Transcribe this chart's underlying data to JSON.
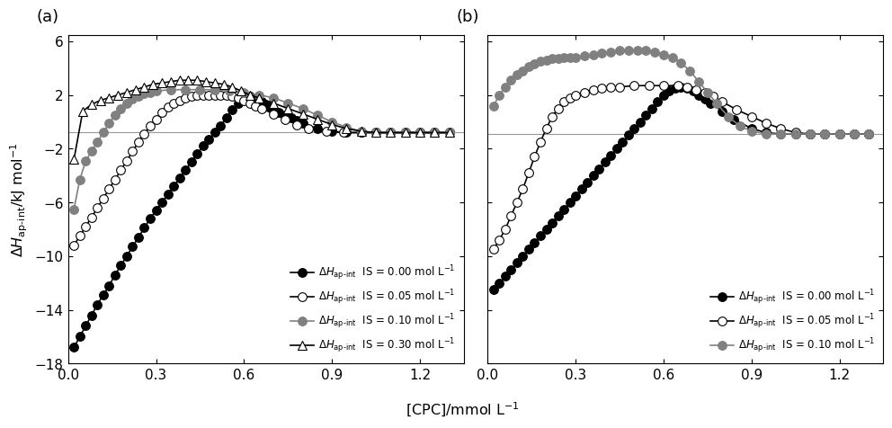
{
  "panel_a": {
    "series": [
      {
        "label": "IS = 0.00 mol L$^{-1}$",
        "color": "black",
        "marker": "o",
        "mfc": "black",
        "mec": "black",
        "x": [
          0.02,
          0.04,
          0.06,
          0.08,
          0.1,
          0.12,
          0.14,
          0.16,
          0.18,
          0.2,
          0.22,
          0.24,
          0.26,
          0.28,
          0.3,
          0.32,
          0.34,
          0.36,
          0.38,
          0.4,
          0.42,
          0.44,
          0.46,
          0.48,
          0.5,
          0.52,
          0.54,
          0.56,
          0.58,
          0.6,
          0.62,
          0.64,
          0.66,
          0.68,
          0.7,
          0.72,
          0.74,
          0.76,
          0.78,
          0.8,
          0.85,
          0.9,
          0.95,
          1.0,
          1.05,
          1.1,
          1.15,
          1.2,
          1.25,
          1.3
        ],
        "y": [
          -16.8,
          -16.0,
          -15.2,
          -14.4,
          -13.6,
          -12.9,
          -12.2,
          -11.4,
          -10.7,
          -10.0,
          -9.3,
          -8.6,
          -7.9,
          -7.2,
          -6.6,
          -6.0,
          -5.4,
          -4.8,
          -4.2,
          -3.6,
          -3.0,
          -2.4,
          -1.8,
          -1.3,
          -0.8,
          -0.3,
          0.3,
          0.9,
          1.4,
          1.7,
          1.9,
          1.8,
          1.5,
          1.2,
          0.9,
          0.7,
          0.5,
          0.3,
          0.1,
          -0.1,
          -0.5,
          -0.7,
          -0.8,
          -0.8,
          -0.8,
          -0.8,
          -0.8,
          -0.8,
          -0.8,
          -0.8
        ]
      },
      {
        "label": "IS = 0.05 mol L$^{-1}$",
        "color": "black",
        "marker": "o",
        "mfc": "white",
        "mec": "black",
        "x": [
          0.02,
          0.04,
          0.06,
          0.08,
          0.1,
          0.12,
          0.14,
          0.16,
          0.18,
          0.2,
          0.22,
          0.24,
          0.26,
          0.28,
          0.3,
          0.32,
          0.34,
          0.36,
          0.38,
          0.4,
          0.42,
          0.44,
          0.46,
          0.48,
          0.5,
          0.52,
          0.54,
          0.56,
          0.58,
          0.6,
          0.62,
          0.64,
          0.66,
          0.7,
          0.74,
          0.78,
          0.82,
          0.88,
          0.94,
          1.0,
          1.05,
          1.1,
          1.15,
          1.2,
          1.25,
          1.3
        ],
        "y": [
          -9.2,
          -8.5,
          -7.8,
          -7.1,
          -6.4,
          -5.7,
          -5.0,
          -4.3,
          -3.6,
          -2.9,
          -2.2,
          -1.5,
          -0.9,
          -0.3,
          0.2,
          0.7,
          1.1,
          1.4,
          1.6,
          1.8,
          1.9,
          2.0,
          2.0,
          2.0,
          2.0,
          2.0,
          2.0,
          1.9,
          1.8,
          1.6,
          1.4,
          1.2,
          1.0,
          0.6,
          0.2,
          -0.2,
          -0.5,
          -0.7,
          -0.8,
          -0.8,
          -0.8,
          -0.8,
          -0.8,
          -0.8,
          -0.8,
          -0.8
        ]
      },
      {
        "label": "IS = 0.10 mol L$^{-1}$",
        "color": "#808080",
        "marker": "o",
        "mfc": "#808080",
        "mec": "#808080",
        "x": [
          0.02,
          0.04,
          0.06,
          0.08,
          0.1,
          0.12,
          0.14,
          0.16,
          0.18,
          0.2,
          0.22,
          0.24,
          0.26,
          0.28,
          0.3,
          0.35,
          0.4,
          0.45,
          0.5,
          0.55,
          0.6,
          0.65,
          0.7,
          0.75,
          0.8,
          0.85,
          0.9,
          0.95,
          1.0,
          1.05,
          1.1,
          1.15,
          1.2,
          1.25,
          1.3
        ],
        "y": [
          -6.5,
          -4.3,
          -2.9,
          -2.2,
          -1.5,
          -0.8,
          -0.1,
          0.5,
          1.0,
          1.4,
          1.7,
          1.9,
          2.1,
          2.2,
          2.3,
          2.4,
          2.4,
          2.4,
          2.4,
          2.3,
          2.2,
          2.0,
          1.8,
          1.4,
          1.0,
          0.5,
          0.0,
          -0.4,
          -0.7,
          -0.8,
          -0.8,
          -0.8,
          -0.8,
          -0.8,
          -0.8
        ]
      },
      {
        "label": "IS = 0.30 mol L$^{-1}$",
        "color": "black",
        "marker": "^",
        "mfc": "white",
        "mec": "black",
        "x": [
          0.02,
          0.05,
          0.08,
          0.11,
          0.14,
          0.17,
          0.2,
          0.23,
          0.26,
          0.29,
          0.32,
          0.35,
          0.38,
          0.41,
          0.44,
          0.47,
          0.5,
          0.53,
          0.56,
          0.59,
          0.62,
          0.65,
          0.7,
          0.75,
          0.8,
          0.85,
          0.9,
          0.95,
          1.0,
          1.05,
          1.1,
          1.15,
          1.2,
          1.25,
          1.3
        ],
        "y": [
          -2.8,
          0.8,
          1.3,
          1.6,
          1.8,
          2.0,
          2.2,
          2.4,
          2.6,
          2.8,
          2.9,
          3.0,
          3.1,
          3.1,
          3.1,
          3.0,
          2.9,
          2.8,
          2.6,
          2.3,
          2.0,
          1.8,
          1.4,
          1.0,
          0.6,
          0.2,
          -0.2,
          -0.5,
          -0.7,
          -0.8,
          -0.8,
          -0.8,
          -0.8,
          -0.8,
          -0.8
        ]
      }
    ],
    "hline_y": -0.8,
    "xlim": [
      0.0,
      1.35
    ],
    "ylim": [
      -18,
      6.5
    ],
    "yticks": [
      -18,
      -14,
      -10,
      -6,
      -2,
      2,
      6
    ],
    "xticks": [
      0.0,
      0.3,
      0.6,
      0.9,
      1.2
    ],
    "panel_label": "(a)"
  },
  "panel_b": {
    "series": [
      {
        "label": "IS = 0.00 mol L$^{-1}$",
        "color": "black",
        "marker": "o",
        "mfc": "black",
        "mec": "black",
        "x": [
          0.02,
          0.04,
          0.06,
          0.08,
          0.1,
          0.12,
          0.14,
          0.16,
          0.18,
          0.2,
          0.22,
          0.24,
          0.26,
          0.28,
          0.3,
          0.32,
          0.34,
          0.36,
          0.38,
          0.4,
          0.42,
          0.44,
          0.46,
          0.48,
          0.5,
          0.52,
          0.54,
          0.56,
          0.58,
          0.6,
          0.62,
          0.64,
          0.66,
          0.68,
          0.7,
          0.72,
          0.74,
          0.76,
          0.8,
          0.84,
          0.9,
          0.95,
          1.0,
          1.05,
          1.1,
          1.15,
          1.2,
          1.25,
          1.3
        ],
        "y": [
          -12.5,
          -12.0,
          -11.5,
          -11.0,
          -10.5,
          -10.0,
          -9.5,
          -9.0,
          -8.5,
          -8.0,
          -7.5,
          -7.0,
          -6.5,
          -6.0,
          -5.5,
          -5.0,
          -4.5,
          -4.0,
          -3.5,
          -3.0,
          -2.5,
          -2.0,
          -1.5,
          -1.0,
          -0.5,
          0.0,
          0.5,
          1.0,
          1.5,
          2.0,
          2.3,
          2.5,
          2.6,
          2.5,
          2.3,
          2.0,
          1.7,
          1.4,
          0.8,
          0.2,
          -0.5,
          -0.8,
          -0.9,
          -0.9,
          -0.9,
          -0.9,
          -0.9,
          -0.9,
          -0.9
        ]
      },
      {
        "label": "IS = 0.05 mol L$^{-1}$",
        "color": "black",
        "marker": "o",
        "mfc": "white",
        "mec": "black",
        "x": [
          0.02,
          0.04,
          0.06,
          0.08,
          0.1,
          0.12,
          0.14,
          0.16,
          0.18,
          0.2,
          0.22,
          0.24,
          0.26,
          0.28,
          0.3,
          0.33,
          0.36,
          0.39,
          0.42,
          0.45,
          0.5,
          0.55,
          0.6,
          0.65,
          0.68,
          0.71,
          0.74,
          0.77,
          0.8,
          0.85,
          0.9,
          0.95,
          1.0,
          1.05,
          1.1,
          1.15,
          1.2,
          1.25,
          1.3
        ],
        "y": [
          -9.5,
          -8.8,
          -8.0,
          -7.0,
          -6.0,
          -5.0,
          -3.8,
          -2.6,
          -1.5,
          -0.5,
          0.4,
          1.0,
          1.5,
          1.8,
          2.0,
          2.2,
          2.4,
          2.5,
          2.6,
          2.6,
          2.7,
          2.7,
          2.7,
          2.7,
          2.6,
          2.4,
          2.2,
          1.9,
          1.5,
          0.9,
          0.4,
          -0.1,
          -0.5,
          -0.8,
          -0.9,
          -0.9,
          -0.9,
          -0.9,
          -0.9
        ]
      },
      {
        "label": "IS = 0.10 mol L$^{-1}$",
        "color": "#808080",
        "marker": "o",
        "mfc": "#808080",
        "mec": "#808080",
        "x": [
          0.02,
          0.04,
          0.06,
          0.08,
          0.1,
          0.12,
          0.14,
          0.16,
          0.18,
          0.2,
          0.22,
          0.24,
          0.26,
          0.28,
          0.3,
          0.33,
          0.36,
          0.39,
          0.42,
          0.45,
          0.48,
          0.51,
          0.54,
          0.57,
          0.6,
          0.63,
          0.66,
          0.69,
          0.72,
          0.75,
          0.78,
          0.82,
          0.86,
          0.9,
          0.95,
          1.0,
          1.05,
          1.1,
          1.15,
          1.2,
          1.25,
          1.3
        ],
        "y": [
          1.2,
          2.0,
          2.6,
          3.1,
          3.5,
          3.8,
          4.1,
          4.3,
          4.5,
          4.6,
          4.7,
          4.7,
          4.8,
          4.8,
          4.8,
          4.9,
          5.0,
          5.1,
          5.2,
          5.3,
          5.3,
          5.3,
          5.3,
          5.2,
          5.0,
          4.8,
          4.4,
          3.8,
          3.0,
          2.2,
          1.4,
          0.4,
          -0.3,
          -0.7,
          -0.9,
          -0.9,
          -0.9,
          -0.9,
          -0.9,
          -0.9,
          -0.9,
          -0.9
        ]
      }
    ],
    "hline_y": -0.9,
    "xlim": [
      0.0,
      1.35
    ],
    "ylim": [
      -18,
      6.5
    ],
    "yticks": [
      -18,
      -14,
      -10,
      -6,
      -2,
      2,
      6
    ],
    "xticks": [
      0.0,
      0.3,
      0.6,
      0.9,
      1.2
    ],
    "panel_label": "(b)"
  },
  "xlabel": "[CPC]/mmol L$^{-1}$",
  "ylabel_line1": "$\\Delta H_{\\mathrm{ap\\text{-}int}}$",
  "ylabel_line2": "/kJ mol$^{-1}$",
  "background_color": "white",
  "hline_color": "#999999",
  "hline_lw": 0.8,
  "legend_label_prefix": "$\\Delta H_{\\mathrm{ap\\text{-}int}}$"
}
